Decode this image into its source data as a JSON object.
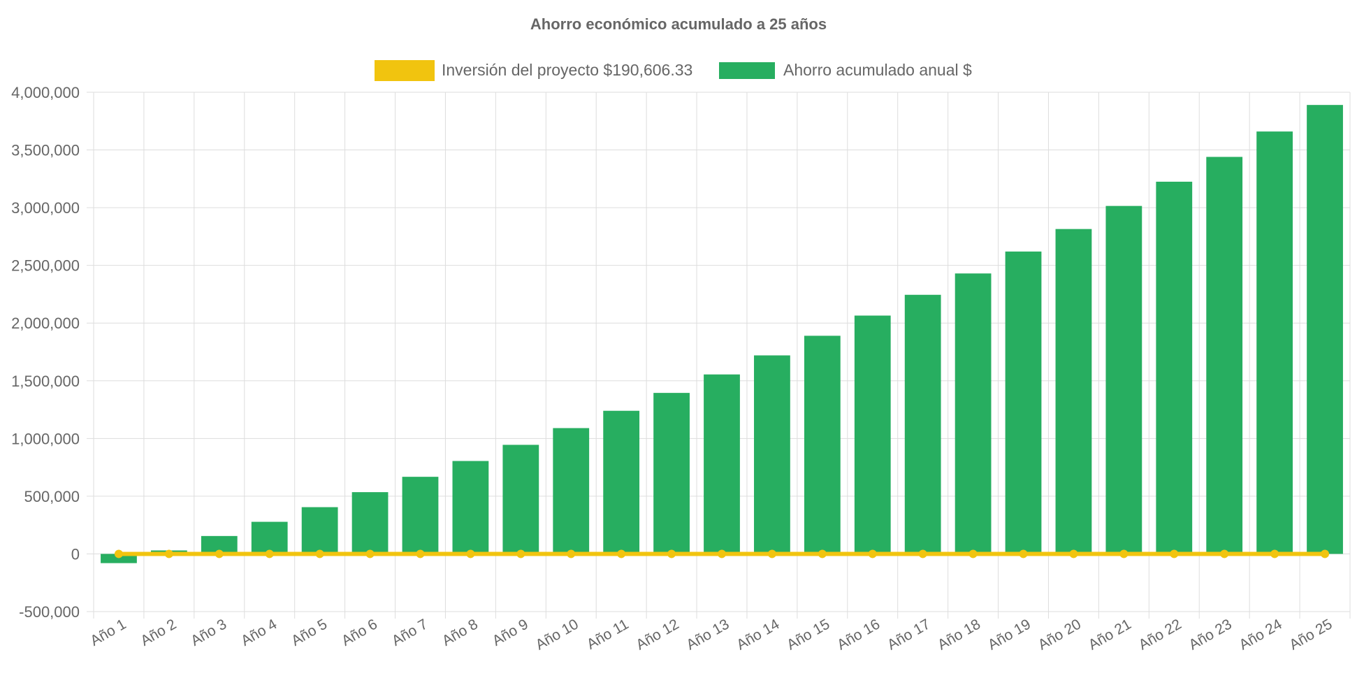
{
  "chart_data": {
    "type": "bar",
    "title": "Ahorro económico acumulado a 25 años",
    "legend_position": "top",
    "categories": [
      "Año 1",
      "Año 2",
      "Año 3",
      "Año 4",
      "Año 5",
      "Año 6",
      "Año 7",
      "Año 8",
      "Año 9",
      "Año 10",
      "Año 11",
      "Año 12",
      "Año 13",
      "Año 14",
      "Año 15",
      "Año 16",
      "Año 17",
      "Año 18",
      "Año 19",
      "Año 20",
      "Año 21",
      "Año 22",
      "Año 23",
      "Año 24",
      "Año 25"
    ],
    "ylim": [
      -500000,
      4000000
    ],
    "yticks": [
      -500000,
      0,
      500000,
      1000000,
      1500000,
      2000000,
      2500000,
      3000000,
      3500000,
      4000000
    ],
    "ytick_labels": [
      "-500,000",
      "0",
      "500,000",
      "1,000,000",
      "1,500,000",
      "2,000,000",
      "2,500,000",
      "3,000,000",
      "3,500,000",
      "4,000,000"
    ],
    "grid": true,
    "series": [
      {
        "name": "Inversión del proyecto $190,606.33",
        "type": "line",
        "color": "#f1c40f",
        "values": [
          0,
          0,
          0,
          0,
          0,
          0,
          0,
          0,
          0,
          0,
          0,
          0,
          0,
          0,
          0,
          0,
          0,
          0,
          0,
          0,
          0,
          0,
          0,
          0,
          0
        ]
      },
      {
        "name": "Ahorro acumulado anual $",
        "type": "bar",
        "color": "#27ae60",
        "values": [
          -80000,
          30000,
          155000,
          278000,
          405000,
          535000,
          668000,
          805000,
          945000,
          1090000,
          1240000,
          1395000,
          1555000,
          1720000,
          1890000,
          2065000,
          2245000,
          2430000,
          2620000,
          2815000,
          3015000,
          3225000,
          3440000,
          3660000,
          3890000
        ]
      }
    ]
  }
}
